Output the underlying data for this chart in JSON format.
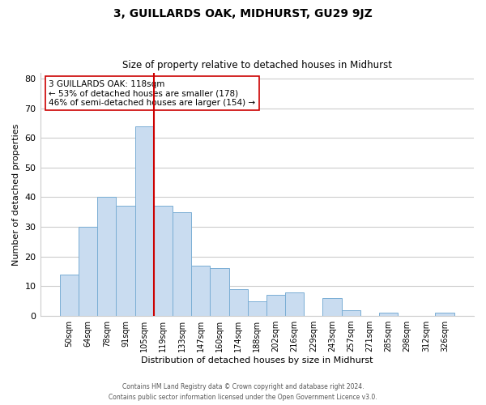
{
  "title": "3, GUILLARDS OAK, MIDHURST, GU29 9JZ",
  "subtitle": "Size of property relative to detached houses in Midhurst",
  "xlabel": "Distribution of detached houses by size in Midhurst",
  "ylabel": "Number of detached properties",
  "bar_labels": [
    "50sqm",
    "64sqm",
    "78sqm",
    "91sqm",
    "105sqm",
    "119sqm",
    "133sqm",
    "147sqm",
    "160sqm",
    "174sqm",
    "188sqm",
    "202sqm",
    "216sqm",
    "229sqm",
    "243sqm",
    "257sqm",
    "271sqm",
    "285sqm",
    "298sqm",
    "312sqm",
    "326sqm"
  ],
  "bar_values": [
    14,
    30,
    40,
    37,
    64,
    37,
    35,
    17,
    16,
    9,
    5,
    7,
    8,
    0,
    6,
    2,
    0,
    1,
    0,
    0,
    1
  ],
  "bar_color": "#c9dcf0",
  "bar_edge_color": "#7aaed4",
  "vline_after_index": 4,
  "vline_color": "#cc0000",
  "ylim": [
    0,
    82
  ],
  "yticks": [
    0,
    10,
    20,
    30,
    40,
    50,
    60,
    70,
    80
  ],
  "annotation_title": "3 GUILLARDS OAK: 118sqm",
  "annotation_line1": "← 53% of detached houses are smaller (178)",
  "annotation_line2": "46% of semi-detached houses are larger (154) →",
  "annotation_box_color": "#ffffff",
  "annotation_box_edge": "#cc0000",
  "footer1": "Contains HM Land Registry data © Crown copyright and database right 2024.",
  "footer2": "Contains public sector information licensed under the Open Government Licence v3.0.",
  "background_color": "#ffffff",
  "grid_color": "#cccccc"
}
